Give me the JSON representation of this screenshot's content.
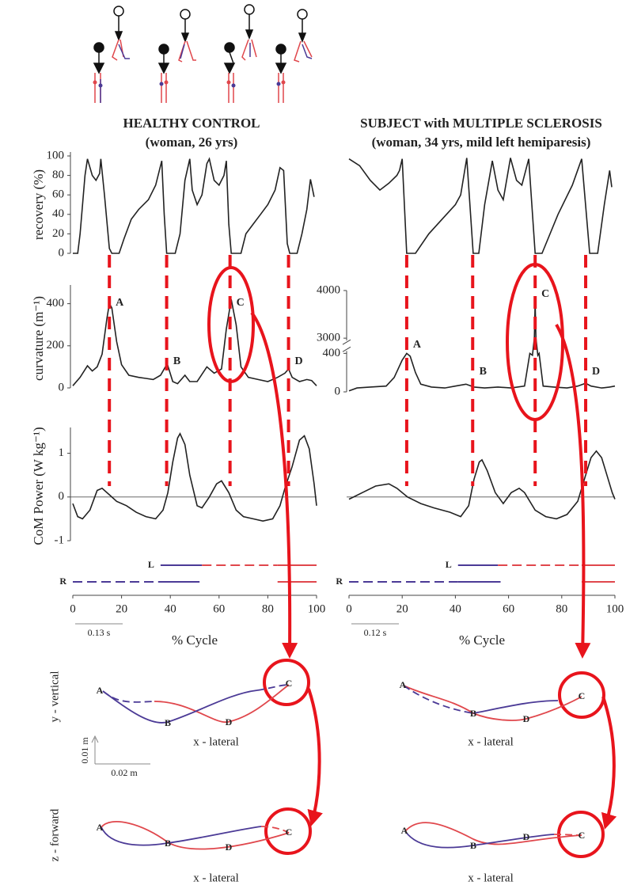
{
  "headers": [
    {
      "title": "HEALTHY CONTROL",
      "subtitle": "(woman, 26 yrs)"
    },
    {
      "title": "SUBJECT with MULTIPLE SCLEROSIS",
      "subtitle": "(woman, 34 yrs, mild left hemiparesis)"
    }
  ],
  "chart_data": [
    {
      "type": "line",
      "ylabel": "recovery (%)",
      "color": "#222222",
      "xlim": [
        0,
        100
      ],
      "ylim": [
        0,
        100
      ],
      "yticks": [
        0,
        20,
        40,
        60,
        80,
        100
      ],
      "x": [
        0,
        2,
        3,
        5,
        6,
        8,
        9.5,
        11,
        11.5,
        13,
        15,
        16,
        19,
        21,
        24,
        27,
        31,
        34,
        36.5,
        37.5,
        38.5,
        42,
        44,
        46,
        48,
        49,
        51,
        53,
        55,
        56,
        58,
        60,
        62,
        63,
        64,
        65,
        69,
        71,
        74,
        77,
        80,
        83,
        85,
        86.5,
        88,
        89,
        92,
        94,
        96,
        97.5,
        99
      ],
      "values": [
        0,
        0,
        20,
        80,
        97,
        80,
        75,
        82,
        97,
        60,
        5,
        0,
        0,
        15,
        35,
        45,
        55,
        70,
        95,
        40,
        0,
        0,
        20,
        75,
        97,
        65,
        50,
        60,
        92,
        97,
        75,
        70,
        80,
        95,
        30,
        0,
        0,
        20,
        30,
        40,
        50,
        65,
        88,
        85,
        10,
        0,
        0,
        20,
        45,
        76,
        58
      ]
    },
    {
      "type": "line",
      "ylabel": "curvature (m⁻¹)",
      "color": "#222222",
      "xlim": [
        0,
        100
      ],
      "ylim": [
        0,
        470
      ],
      "yticks": [
        0,
        200,
        400
      ],
      "x": [
        0,
        3,
        6,
        8,
        10,
        12,
        14,
        15,
        16,
        18,
        20,
        23,
        27,
        30,
        33,
        36,
        38,
        39,
        41,
        43,
        46,
        48,
        51,
        55,
        58,
        61,
        63,
        65,
        67,
        69,
        72,
        76,
        80,
        84,
        87,
        88.5,
        90,
        93,
        96,
        98,
        100
      ],
      "values": [
        10,
        50,
        105,
        80,
        100,
        160,
        330,
        400,
        380,
        220,
        110,
        60,
        50,
        45,
        40,
        60,
        100,
        105,
        30,
        20,
        60,
        30,
        30,
        100,
        70,
        90,
        280,
        420,
        300,
        100,
        50,
        40,
        30,
        50,
        70,
        90,
        50,
        30,
        40,
        35,
        10
      ]
    },
    {
      "type": "line",
      "ylabel": "CoM Power (W kg⁻¹)",
      "color": "#222222",
      "xlim": [
        0,
        100
      ],
      "ylim": [
        -1,
        1.5
      ],
      "yticks": [
        -1,
        0,
        1
      ],
      "hline": 0,
      "xticks": [
        0,
        20,
        40,
        60,
        80,
        100
      ],
      "xlabel": "% Cycle",
      "scale_bar": "0.13 s",
      "x": [
        0,
        2,
        4,
        7,
        10,
        12,
        15,
        18,
        22,
        26,
        30,
        34,
        37,
        39,
        41,
        43,
        44,
        46,
        48,
        51,
        53,
        56,
        59,
        61,
        64,
        67,
        70,
        74,
        78,
        82,
        85,
        87,
        90,
        93,
        95,
        97,
        99,
        100
      ],
      "values": [
        -0.15,
        -0.45,
        -0.5,
        -0.3,
        0.15,
        0.2,
        0.05,
        -0.1,
        -0.2,
        -0.35,
        -0.45,
        -0.5,
        -0.3,
        0.1,
        0.8,
        1.35,
        1.45,
        1.2,
        0.5,
        -0.2,
        -0.25,
        0,
        0.3,
        0.37,
        0.1,
        -0.3,
        -0.45,
        -0.5,
        -0.55,
        -0.5,
        -0.2,
        0.2,
        0.7,
        1.3,
        1.4,
        1.1,
        0.3,
        -0.2
      ]
    },
    {
      "type": "line",
      "color": "#222222",
      "xlim": [
        0,
        100
      ],
      "ylim": [
        0,
        100
      ],
      "x": [
        0,
        4,
        8,
        11.6,
        15,
        18,
        19,
        20,
        21.7,
        25,
        30,
        35,
        40,
        42,
        44.3,
        46.7,
        48.8,
        51,
        53.9,
        56,
        58,
        60.7,
        63,
        65,
        67.6,
        70,
        72.6,
        78.6,
        84,
        87.5,
        90.5,
        93.5,
        96,
        98,
        98.8
      ],
      "values": [
        97,
        90,
        75,
        65,
        72,
        80,
        85,
        97,
        0,
        0,
        20,
        35,
        50,
        60,
        98,
        0,
        0,
        50,
        95,
        65,
        55,
        98,
        75,
        70,
        97,
        0,
        0,
        40,
        70,
        97,
        0,
        0,
        50,
        85,
        68
      ]
    },
    {
      "type": "line",
      "color": "#222222",
      "xlim": [
        0,
        100
      ],
      "ylim": [
        0,
        4000
      ],
      "yticks": [
        0,
        400,
        3000,
        4000
      ],
      "ybreak": [
        400,
        3000
      ],
      "x": [
        0,
        3,
        8,
        14,
        17,
        20,
        21.7,
        23,
        25,
        27,
        31,
        36,
        40,
        44,
        47,
        51,
        56,
        61,
        66,
        68,
        69,
        69.7,
        70,
        70.3,
        71,
        71.5,
        73,
        77,
        82,
        86,
        89,
        91,
        95,
        98,
        100
      ],
      "values": [
        10,
        40,
        50,
        60,
        150,
        330,
        400,
        370,
        200,
        80,
        50,
        40,
        60,
        80,
        50,
        40,
        50,
        40,
        60,
        400,
        380,
        3000,
        3750,
        3000,
        380,
        400,
        60,
        50,
        40,
        60,
        90,
        60,
        40,
        50,
        60
      ]
    },
    {
      "type": "line",
      "color": "#222222",
      "xlim": [
        0,
        100
      ],
      "ylim": [
        -1,
        1.5
      ],
      "hline": 0,
      "xticks": [
        0,
        20,
        40,
        60,
        80,
        100
      ],
      "xlabel": "% Cycle",
      "scale_bar": "0.12 s",
      "x": [
        0,
        5,
        10,
        15,
        18,
        22,
        27,
        32,
        38,
        42,
        45,
        47,
        49,
        50,
        52,
        55,
        58,
        61,
        64,
        66,
        70,
        74,
        78,
        82,
        86,
        89,
        91,
        93,
        95,
        97,
        99,
        100
      ],
      "values": [
        -0.05,
        0.1,
        0.25,
        0.3,
        0.2,
        0,
        -0.15,
        -0.25,
        -0.35,
        -0.45,
        -0.2,
        0.4,
        0.8,
        0.85,
        0.6,
        0.1,
        -0.15,
        0.1,
        0.2,
        0.1,
        -0.3,
        -0.45,
        -0.5,
        -0.4,
        -0.1,
        0.5,
        0.9,
        1.05,
        0.9,
        0.5,
        0.1,
        -0.05
      ]
    }
  ],
  "events": [
    {
      "x": [
        15,
        38.5,
        64.5,
        88.5
      ],
      "labels": [
        "A",
        "B",
        "C",
        "D"
      ]
    },
    {
      "x": [
        21.7,
        46.5,
        70,
        89
      ],
      "labels": [
        "A",
        "B",
        "C",
        "D"
      ]
    }
  ],
  "gait": [
    {
      "rows": [
        {
          "label": "L",
          "segments": [
            {
              "start": 36,
              "end": 53,
              "color": "#4b3a96",
              "dashed": false
            },
            {
              "start": 53,
              "end": 84,
              "color": "#e0474c",
              "dashed": true
            },
            {
              "start": 84,
              "end": 100,
              "color": "#e0474c",
              "dashed": false
            }
          ]
        },
        {
          "label": "R",
          "segments": [
            {
              "start": 0,
              "end": 35,
              "color": "#4b3a96",
              "dashed": true
            },
            {
              "start": 35,
              "end": 52,
              "color": "#4b3a96",
              "dashed": false
            },
            {
              "start": 84,
              "end": 100,
              "color": "#e0474c",
              "dashed": false
            }
          ]
        }
      ]
    },
    {
      "rows": [
        {
          "label": "L",
          "segments": [
            {
              "start": 41,
              "end": 56,
              "color": "#4b3a96",
              "dashed": false
            },
            {
              "start": 56,
              "end": 87.5,
              "color": "#e0474c",
              "dashed": true
            },
            {
              "start": 87.5,
              "end": 100,
              "color": "#e0474c",
              "dashed": false
            }
          ]
        },
        {
          "label": "R",
          "segments": [
            {
              "start": 0,
              "end": 41,
              "color": "#4b3a96",
              "dashed": true
            },
            {
              "start": 41,
              "end": 57,
              "color": "#4b3a96",
              "dashed": false
            },
            {
              "start": 87.5,
              "end": 100,
              "color": "#e0474c",
              "dashed": false
            }
          ]
        }
      ]
    }
  ],
  "trajectory": {
    "point_labels": [
      "A",
      "B",
      "C",
      "D"
    ],
    "y_label_top": "y - vertical",
    "y_label_bottom": "z - forward",
    "x_label": "x - lateral",
    "scale_v": "0.01 m",
    "scale_h": "0.02 m"
  }
}
